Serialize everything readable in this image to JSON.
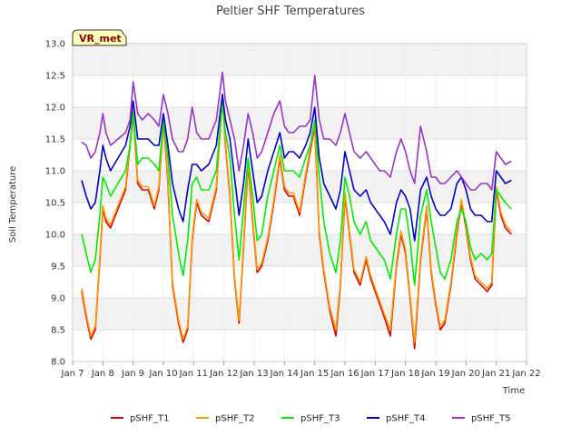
{
  "chart_data": {
    "type": "line",
    "title": "Peltier SHF Temperatures",
    "xlabel": "Time",
    "ylabel": "Soil Temperature",
    "badge": "VR_met",
    "ylim": [
      8.0,
      13.0
    ],
    "yticks": [
      8.0,
      8.5,
      9.0,
      9.5,
      10.0,
      10.5,
      11.0,
      11.5,
      12.0,
      12.5,
      13.0
    ],
    "xlim": [
      7,
      22
    ],
    "xticks": [
      7,
      8,
      9,
      10,
      11,
      12,
      13,
      14,
      15,
      16,
      17,
      18,
      19,
      20,
      21,
      22
    ],
    "xtick_labels": [
      "Jan 7",
      "Jan 8",
      "Jan 9",
      "Jan 10",
      "Jan 11",
      "Jan 12",
      "Jan 13",
      "Jan 14",
      "Jan 15",
      "Jan 16",
      "Jan 17",
      "Jan 18",
      "Jan 19",
      "Jan 20",
      "Jan 21",
      "Jan 22"
    ],
    "grid": true,
    "legend_position": "bottom",
    "series": [
      {
        "name": "pSHF_T1",
        "color": "#dd0000",
        "x": [
          7.3,
          7.45,
          7.6,
          7.75,
          7.9,
          8.0,
          8.1,
          8.25,
          8.5,
          8.75,
          8.9,
          9.0,
          9.15,
          9.3,
          9.5,
          9.7,
          9.85,
          10.0,
          10.15,
          10.3,
          10.5,
          10.65,
          10.8,
          10.95,
          11.1,
          11.25,
          11.5,
          11.75,
          11.95,
          12.05,
          12.2,
          12.35,
          12.5,
          12.65,
          12.8,
          12.95,
          13.1,
          13.25,
          13.45,
          13.65,
          13.85,
          14.0,
          14.15,
          14.3,
          14.5,
          14.7,
          14.85,
          15.0,
          15.15,
          15.3,
          15.5,
          15.7,
          15.85,
          16.0,
          16.15,
          16.3,
          16.5,
          16.7,
          16.85,
          17.0,
          17.15,
          17.3,
          17.5,
          17.7,
          17.85,
          18.0,
          18.15,
          18.3,
          18.5,
          18.7,
          18.85,
          19.0,
          19.15,
          19.3,
          19.5,
          19.7,
          19.85,
          20.0,
          20.15,
          20.3,
          20.5,
          20.7,
          20.85,
          21.0,
          21.15,
          21.3,
          21.5
        ],
        "values": [
          9.1,
          8.7,
          8.35,
          8.5,
          9.6,
          10.4,
          10.2,
          10.1,
          10.4,
          10.7,
          11.4,
          11.9,
          10.8,
          10.7,
          10.7,
          10.4,
          10.7,
          11.8,
          10.8,
          9.2,
          8.6,
          8.3,
          8.5,
          9.9,
          10.5,
          10.3,
          10.2,
          10.7,
          12.2,
          11.4,
          10.6,
          9.3,
          8.6,
          9.8,
          11.1,
          10.2,
          9.4,
          9.5,
          9.9,
          10.5,
          11.2,
          10.7,
          10.6,
          10.6,
          10.3,
          10.9,
          11.3,
          11.7,
          10.0,
          9.4,
          8.8,
          8.4,
          9.2,
          10.6,
          10.0,
          9.4,
          9.2,
          9.6,
          9.3,
          9.1,
          8.9,
          8.7,
          8.4,
          9.5,
          10.0,
          9.7,
          9.0,
          8.2,
          9.6,
          10.4,
          9.4,
          8.9,
          8.5,
          8.6,
          9.2,
          10.0,
          10.5,
          10.1,
          9.6,
          9.3,
          9.2,
          9.1,
          9.2,
          10.7,
          10.3,
          10.1,
          10.0
        ]
      },
      {
        "name": "pSHF_T2",
        "color": "#ff9900",
        "x": [
          7.3,
          7.45,
          7.6,
          7.75,
          7.9,
          8.0,
          8.1,
          8.25,
          8.5,
          8.75,
          8.9,
          9.0,
          9.15,
          9.3,
          9.5,
          9.7,
          9.85,
          10.0,
          10.15,
          10.3,
          10.5,
          10.65,
          10.8,
          10.95,
          11.1,
          11.25,
          11.5,
          11.75,
          11.95,
          12.05,
          12.2,
          12.35,
          12.5,
          12.65,
          12.8,
          12.95,
          13.1,
          13.25,
          13.45,
          13.65,
          13.85,
          14.0,
          14.15,
          14.3,
          14.5,
          14.7,
          14.85,
          15.0,
          15.15,
          15.3,
          15.5,
          15.7,
          15.85,
          16.0,
          16.15,
          16.3,
          16.5,
          16.7,
          16.85,
          17.0,
          17.15,
          17.3,
          17.5,
          17.7,
          17.85,
          18.0,
          18.15,
          18.3,
          18.5,
          18.7,
          18.85,
          19.0,
          19.15,
          19.3,
          19.5,
          19.7,
          19.85,
          20.0,
          20.15,
          20.3,
          20.5,
          20.7,
          20.85,
          21.0,
          21.15,
          21.3,
          21.5
        ],
        "values": [
          9.15,
          8.75,
          8.4,
          8.55,
          9.65,
          10.45,
          10.25,
          10.15,
          10.45,
          10.75,
          11.45,
          11.95,
          10.85,
          10.75,
          10.75,
          10.45,
          10.75,
          11.85,
          10.85,
          9.25,
          8.65,
          8.35,
          8.55,
          9.95,
          10.55,
          10.35,
          10.25,
          10.75,
          12.15,
          11.45,
          10.65,
          9.35,
          8.65,
          9.85,
          11.15,
          10.25,
          9.45,
          9.55,
          9.95,
          10.55,
          11.25,
          10.75,
          10.65,
          10.65,
          10.35,
          10.95,
          11.35,
          11.75,
          10.05,
          9.45,
          8.85,
          8.5,
          9.25,
          10.65,
          10.05,
          9.45,
          9.25,
          9.65,
          9.35,
          9.15,
          8.95,
          8.75,
          8.5,
          9.55,
          10.05,
          9.75,
          9.05,
          8.3,
          9.65,
          10.45,
          9.45,
          8.95,
          8.55,
          8.65,
          9.25,
          10.05,
          10.55,
          10.15,
          9.65,
          9.35,
          9.25,
          9.15,
          9.25,
          10.75,
          10.35,
          10.15,
          10.05
        ]
      },
      {
        "name": "pSHF_T3",
        "color": "#00ee00",
        "x": [
          7.3,
          7.45,
          7.6,
          7.75,
          7.9,
          8.0,
          8.1,
          8.25,
          8.5,
          8.75,
          8.9,
          9.0,
          9.15,
          9.3,
          9.5,
          9.7,
          9.85,
          10.0,
          10.15,
          10.3,
          10.5,
          10.65,
          10.8,
          10.95,
          11.1,
          11.25,
          11.5,
          11.75,
          11.95,
          12.05,
          12.2,
          12.35,
          12.5,
          12.65,
          12.8,
          12.95,
          13.1,
          13.25,
          13.45,
          13.65,
          13.85,
          14.0,
          14.15,
          14.3,
          14.5,
          14.7,
          14.85,
          15.0,
          15.15,
          15.3,
          15.5,
          15.7,
          15.85,
          16.0,
          16.15,
          16.3,
          16.5,
          16.7,
          16.85,
          17.0,
          17.15,
          17.3,
          17.5,
          17.7,
          17.85,
          18.0,
          18.15,
          18.3,
          18.5,
          18.7,
          18.85,
          19.0,
          19.15,
          19.3,
          19.5,
          19.7,
          19.85,
          20.0,
          20.15,
          20.3,
          20.5,
          20.7,
          20.85,
          21.0,
          21.15,
          21.3,
          21.5
        ],
        "values": [
          10.0,
          9.7,
          9.4,
          9.6,
          10.3,
          10.9,
          10.8,
          10.6,
          10.8,
          11.0,
          11.4,
          11.9,
          11.1,
          11.2,
          11.2,
          11.1,
          11.0,
          11.8,
          11.2,
          10.3,
          9.7,
          9.35,
          9.9,
          10.8,
          10.9,
          10.7,
          10.7,
          11.0,
          12.1,
          11.6,
          11.2,
          10.3,
          9.6,
          10.4,
          11.2,
          10.6,
          9.9,
          10.0,
          10.6,
          11.0,
          11.4,
          11.0,
          11.0,
          11.0,
          10.9,
          11.2,
          11.4,
          11.8,
          10.9,
          10.2,
          9.7,
          9.4,
          9.9,
          10.9,
          10.6,
          10.2,
          10.0,
          10.2,
          9.9,
          9.8,
          9.7,
          9.6,
          9.3,
          10.0,
          10.4,
          10.4,
          9.9,
          9.2,
          10.3,
          10.7,
          10.2,
          9.8,
          9.4,
          9.3,
          9.6,
          10.2,
          10.4,
          10.2,
          9.8,
          9.6,
          9.7,
          9.6,
          9.7,
          10.7,
          10.6,
          10.5,
          10.4
        ]
      },
      {
        "name": "pSHF_T4",
        "color": "#0000cc",
        "x": [
          7.3,
          7.45,
          7.6,
          7.75,
          7.9,
          8.0,
          8.1,
          8.25,
          8.5,
          8.75,
          8.9,
          9.0,
          9.15,
          9.3,
          9.5,
          9.7,
          9.85,
          10.0,
          10.15,
          10.3,
          10.5,
          10.65,
          10.8,
          10.95,
          11.1,
          11.25,
          11.5,
          11.75,
          11.95,
          12.05,
          12.2,
          12.35,
          12.5,
          12.65,
          12.8,
          12.95,
          13.1,
          13.25,
          13.45,
          13.65,
          13.85,
          14.0,
          14.15,
          14.3,
          14.5,
          14.7,
          14.85,
          15.0,
          15.15,
          15.3,
          15.5,
          15.7,
          15.85,
          16.0,
          16.15,
          16.3,
          16.5,
          16.7,
          16.85,
          17.0,
          17.15,
          17.3,
          17.5,
          17.7,
          17.85,
          18.0,
          18.15,
          18.3,
          18.5,
          18.7,
          18.85,
          19.0,
          19.15,
          19.3,
          19.5,
          19.7,
          19.85,
          20.0,
          20.15,
          20.3,
          20.5,
          20.7,
          20.85,
          21.0,
          21.15,
          21.3,
          21.5
        ],
        "values": [
          10.85,
          10.6,
          10.4,
          10.5,
          11.0,
          11.4,
          11.2,
          11.0,
          11.2,
          11.4,
          11.7,
          12.1,
          11.5,
          11.5,
          11.5,
          11.4,
          11.4,
          11.9,
          11.4,
          10.8,
          10.4,
          10.2,
          10.7,
          11.1,
          11.1,
          11.0,
          11.1,
          11.4,
          12.2,
          11.8,
          11.5,
          10.9,
          10.3,
          10.8,
          11.5,
          11.0,
          10.5,
          10.6,
          11.0,
          11.3,
          11.6,
          11.2,
          11.3,
          11.3,
          11.2,
          11.4,
          11.6,
          12.0,
          11.2,
          10.8,
          10.6,
          10.4,
          10.7,
          11.3,
          11.0,
          10.7,
          10.6,
          10.7,
          10.5,
          10.4,
          10.3,
          10.2,
          10.0,
          10.5,
          10.7,
          10.6,
          10.4,
          9.9,
          10.7,
          10.9,
          10.6,
          10.4,
          10.3,
          10.3,
          10.4,
          10.8,
          10.9,
          10.7,
          10.4,
          10.3,
          10.3,
          10.2,
          10.2,
          11.0,
          10.9,
          10.8,
          10.85
        ]
      },
      {
        "name": "pSHF_T5",
        "color": "#9933cc",
        "x": [
          7.3,
          7.45,
          7.6,
          7.75,
          7.9,
          8.0,
          8.1,
          8.25,
          8.5,
          8.75,
          8.9,
          9.0,
          9.15,
          9.3,
          9.5,
          9.7,
          9.85,
          10.0,
          10.15,
          10.3,
          10.5,
          10.65,
          10.8,
          10.95,
          11.1,
          11.25,
          11.5,
          11.75,
          11.95,
          12.05,
          12.2,
          12.35,
          12.5,
          12.65,
          12.8,
          12.95,
          13.1,
          13.25,
          13.45,
          13.65,
          13.85,
          14.0,
          14.15,
          14.3,
          14.5,
          14.7,
          14.85,
          15.0,
          15.15,
          15.3,
          15.5,
          15.7,
          15.85,
          16.0,
          16.15,
          16.3,
          16.5,
          16.7,
          16.85,
          17.0,
          17.15,
          17.3,
          17.5,
          17.7,
          17.85,
          18.0,
          18.15,
          18.3,
          18.5,
          18.7,
          18.85,
          19.0,
          19.15,
          19.3,
          19.5,
          19.7,
          19.85,
          20.0,
          20.15,
          20.3,
          20.5,
          20.7,
          20.85,
          21.0,
          21.15,
          21.3,
          21.5
        ],
        "values": [
          11.45,
          11.4,
          11.2,
          11.3,
          11.6,
          11.9,
          11.6,
          11.4,
          11.5,
          11.6,
          11.8,
          12.4,
          11.9,
          11.8,
          11.9,
          11.8,
          11.7,
          12.2,
          11.9,
          11.5,
          11.3,
          11.3,
          11.5,
          12.0,
          11.6,
          11.5,
          11.5,
          11.8,
          12.55,
          12.1,
          11.8,
          11.5,
          11.0,
          11.4,
          11.9,
          11.6,
          11.2,
          11.3,
          11.6,
          11.9,
          12.1,
          11.7,
          11.6,
          11.6,
          11.7,
          11.7,
          11.8,
          12.5,
          11.8,
          11.5,
          11.5,
          11.4,
          11.6,
          11.9,
          11.6,
          11.3,
          11.2,
          11.3,
          11.2,
          11.1,
          11.0,
          11.0,
          10.9,
          11.3,
          11.5,
          11.3,
          11.0,
          10.8,
          11.7,
          11.3,
          10.9,
          10.9,
          10.8,
          10.8,
          10.9,
          11.0,
          10.9,
          10.8,
          10.7,
          10.7,
          10.8,
          10.8,
          10.7,
          11.3,
          11.2,
          11.1,
          11.15
        ]
      }
    ]
  }
}
